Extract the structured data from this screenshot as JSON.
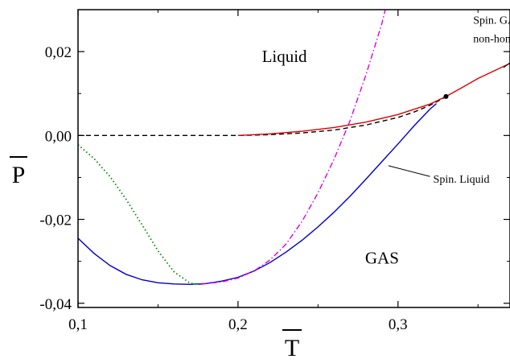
{
  "chart_data": {
    "type": "line",
    "title": "",
    "xlabel": "T",
    "ylabel": "P",
    "xlim": [
      0.1,
      0.37
    ],
    "ylim": [
      -0.041,
      0.03
    ],
    "grid": false,
    "x_ticks": [
      {
        "value": 0.1,
        "label": "0,1"
      },
      {
        "value": 0.2,
        "label": "0,2"
      },
      {
        "value": 0.3,
        "label": "0,3"
      }
    ],
    "y_ticks": [
      {
        "value": 0.02,
        "label": "0,02"
      },
      {
        "value": 0.0,
        "label": "0,00"
      },
      {
        "value": -0.02,
        "label": "-0,02"
      },
      {
        "value": -0.04,
        "label": "-0,04"
      }
    ],
    "series": [
      {
        "color": "#0000cc",
        "style": "solid",
        "points": [
          [
            0.1,
            -0.0245
          ],
          [
            0.11,
            -0.0281
          ],
          [
            0.12,
            -0.031
          ],
          [
            0.13,
            -0.0331
          ],
          [
            0.14,
            -0.0344
          ],
          [
            0.15,
            -0.0351
          ],
          [
            0.16,
            -0.0354
          ],
          [
            0.17,
            -0.0355
          ],
          [
            0.18,
            -0.0353
          ],
          [
            0.19,
            -0.0347
          ],
          [
            0.2,
            -0.0338
          ],
          [
            0.21,
            -0.0323
          ],
          [
            0.22,
            -0.0303
          ],
          [
            0.23,
            -0.0278
          ],
          [
            0.24,
            -0.025
          ],
          [
            0.25,
            -0.0218
          ],
          [
            0.26,
            -0.0183
          ],
          [
            0.27,
            -0.0145
          ],
          [
            0.28,
            -0.0104
          ],
          [
            0.29,
            -0.0062
          ],
          [
            0.3,
            -0.002
          ],
          [
            0.31,
            0.0023
          ],
          [
            0.32,
            0.0063
          ],
          [
            0.324,
            0.0076
          ]
        ]
      },
      {
        "color": "#008800",
        "style": "dotted",
        "points": [
          [
            0.1,
            -0.0022
          ],
          [
            0.11,
            -0.0055
          ],
          [
            0.12,
            -0.0098
          ],
          [
            0.13,
            -0.0152
          ],
          [
            0.14,
            -0.0213
          ],
          [
            0.15,
            -0.0275
          ],
          [
            0.16,
            -0.0325
          ],
          [
            0.17,
            -0.0352
          ],
          [
            0.176,
            -0.0355
          ]
        ]
      },
      {
        "color": "#dd00dd",
        "style": "dashdot",
        "points": [
          [
            0.176,
            -0.0355
          ],
          [
            0.19,
            -0.0349
          ],
          [
            0.2,
            -0.034
          ],
          [
            0.21,
            -0.0323
          ],
          [
            0.22,
            -0.0297
          ],
          [
            0.23,
            -0.0259
          ],
          [
            0.24,
            -0.0205
          ],
          [
            0.25,
            -0.0137
          ],
          [
            0.26,
            -0.0057
          ],
          [
            0.27,
            0.0035
          ],
          [
            0.28,
            0.0145
          ],
          [
            0.29,
            0.0268
          ],
          [
            0.292,
            0.03
          ]
        ]
      },
      {
        "color": "#000000",
        "style": "dashed",
        "points": [
          [
            0.1,
            0.0
          ],
          [
            0.2,
            0.0
          ],
          [
            0.22,
            0.0002
          ],
          [
            0.24,
            0.0006
          ],
          [
            0.26,
            0.0013
          ],
          [
            0.28,
            0.0025
          ],
          [
            0.3,
            0.0043
          ],
          [
            0.31,
            0.0056
          ],
          [
            0.32,
            0.0072
          ],
          [
            0.33,
            0.0092
          ]
        ]
      },
      {
        "color": "#dd0000",
        "style": "solid",
        "points": [
          [
            0.2,
            0.0
          ],
          [
            0.22,
            0.0004
          ],
          [
            0.24,
            0.001
          ],
          [
            0.26,
            0.0019
          ],
          [
            0.28,
            0.0032
          ],
          [
            0.3,
            0.005
          ],
          [
            0.32,
            0.0075
          ],
          [
            0.33,
            0.0093
          ],
          [
            0.34,
            0.0114
          ],
          [
            0.35,
            0.0136
          ],
          [
            0.36,
            0.0154
          ],
          [
            0.37,
            0.0172
          ]
        ]
      }
    ],
    "critical_point": {
      "x": 0.33,
      "y": 0.0093
    },
    "annotations": [
      {
        "text": "Liquid",
        "x": 0.229,
        "y": 0.0175
      },
      {
        "text": "GAS",
        "x": 0.29,
        "y": -0.0305
      },
      {
        "text": "Spin. Liquid",
        "x": 0.322,
        "y": -0.0113,
        "arrow_to": [
          0.294,
          -0.0072
        ]
      },
      {
        "text": "Spin. GAS",
        "x": 0.347,
        "y": 0.0266
      },
      {
        "text": "non-homog.",
        "x": 0.347,
        "y": 0.0222,
        "arrow_to": [
          0.366,
          0.0162
        ]
      }
    ]
  }
}
